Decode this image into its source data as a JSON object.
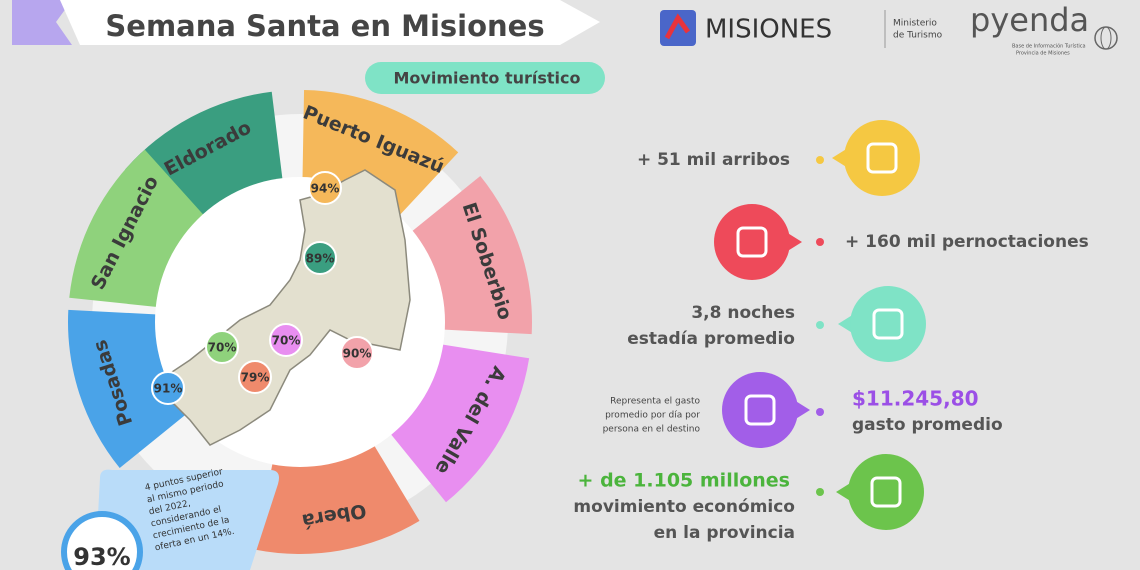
{
  "header": {
    "title": "Semana Santa en Misiones",
    "subtitle": "Movimiento turístico"
  },
  "logos": {
    "misiones": "MISIONES",
    "ministerio": [
      "Ministerio",
      "de Turismo"
    ],
    "pyenda": "pyenda",
    "pyenda_caption": [
      "Base de Información Turística",
      "Provincia de Misiones"
    ]
  },
  "regions": [
    "Eldorado",
    "Puerto Iguazú",
    "El Soberbio",
    "A. del Valle",
    "Oberá",
    "Posadas",
    "San Ignacio"
  ],
  "map_labels": [
    "94%",
    "89%",
    "70%",
    "70%",
    "90%",
    "91%",
    "79%"
  ],
  "note": {
    "lines": [
      "4 puntos superior",
      "al mismo periodo",
      "del 2022,",
      "considerando el",
      "crecimiento de la",
      "oferta en un 14%."
    ],
    "total": "93%"
  },
  "stats": {
    "arrivals": "+ 51 mil arribos",
    "overnights": "+ 160 mil pernoctaciones",
    "stay": [
      "3,8 noches",
      "estadía promedio"
    ],
    "spend_note": [
      "Representa el gasto",
      "promedio por día por",
      "persona en el destino"
    ],
    "spend_value": "$11.245,80",
    "spend_label": "gasto promedio",
    "economy": [
      "+ de 1.105 millones",
      "movimiento económico",
      "en la provincia"
    ]
  }
}
